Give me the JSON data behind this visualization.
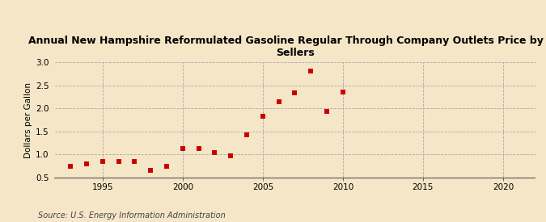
{
  "title": "Annual New Hampshire Reformulated Gasoline Regular Through Company Outlets Price by All Sellers",
  "ylabel": "Dollars per Gallon",
  "source": "Source: U.S. Energy Information Administration",
  "background_color": "#f5e6c8",
  "plot_bg_color": "#f5e6c8",
  "marker_color": "#cc0000",
  "marker": "s",
  "marker_size": 4,
  "xlim": [
    1992,
    2022
  ],
  "ylim": [
    0.5,
    3.0
  ],
  "xticks": [
    1995,
    2000,
    2005,
    2010,
    2015,
    2020
  ],
  "yticks": [
    0.5,
    1.0,
    1.5,
    2.0,
    2.5,
    3.0
  ],
  "years": [
    1993,
    1994,
    1995,
    1996,
    1997,
    1998,
    1999,
    2000,
    2001,
    2002,
    2003,
    2004,
    2005,
    2006,
    2007,
    2008,
    2009,
    2010
  ],
  "prices": [
    0.75,
    0.79,
    0.85,
    0.85,
    0.85,
    0.65,
    0.75,
    1.13,
    1.13,
    1.05,
    0.97,
    1.43,
    1.82,
    2.14,
    2.33,
    2.8,
    1.93,
    2.35
  ]
}
